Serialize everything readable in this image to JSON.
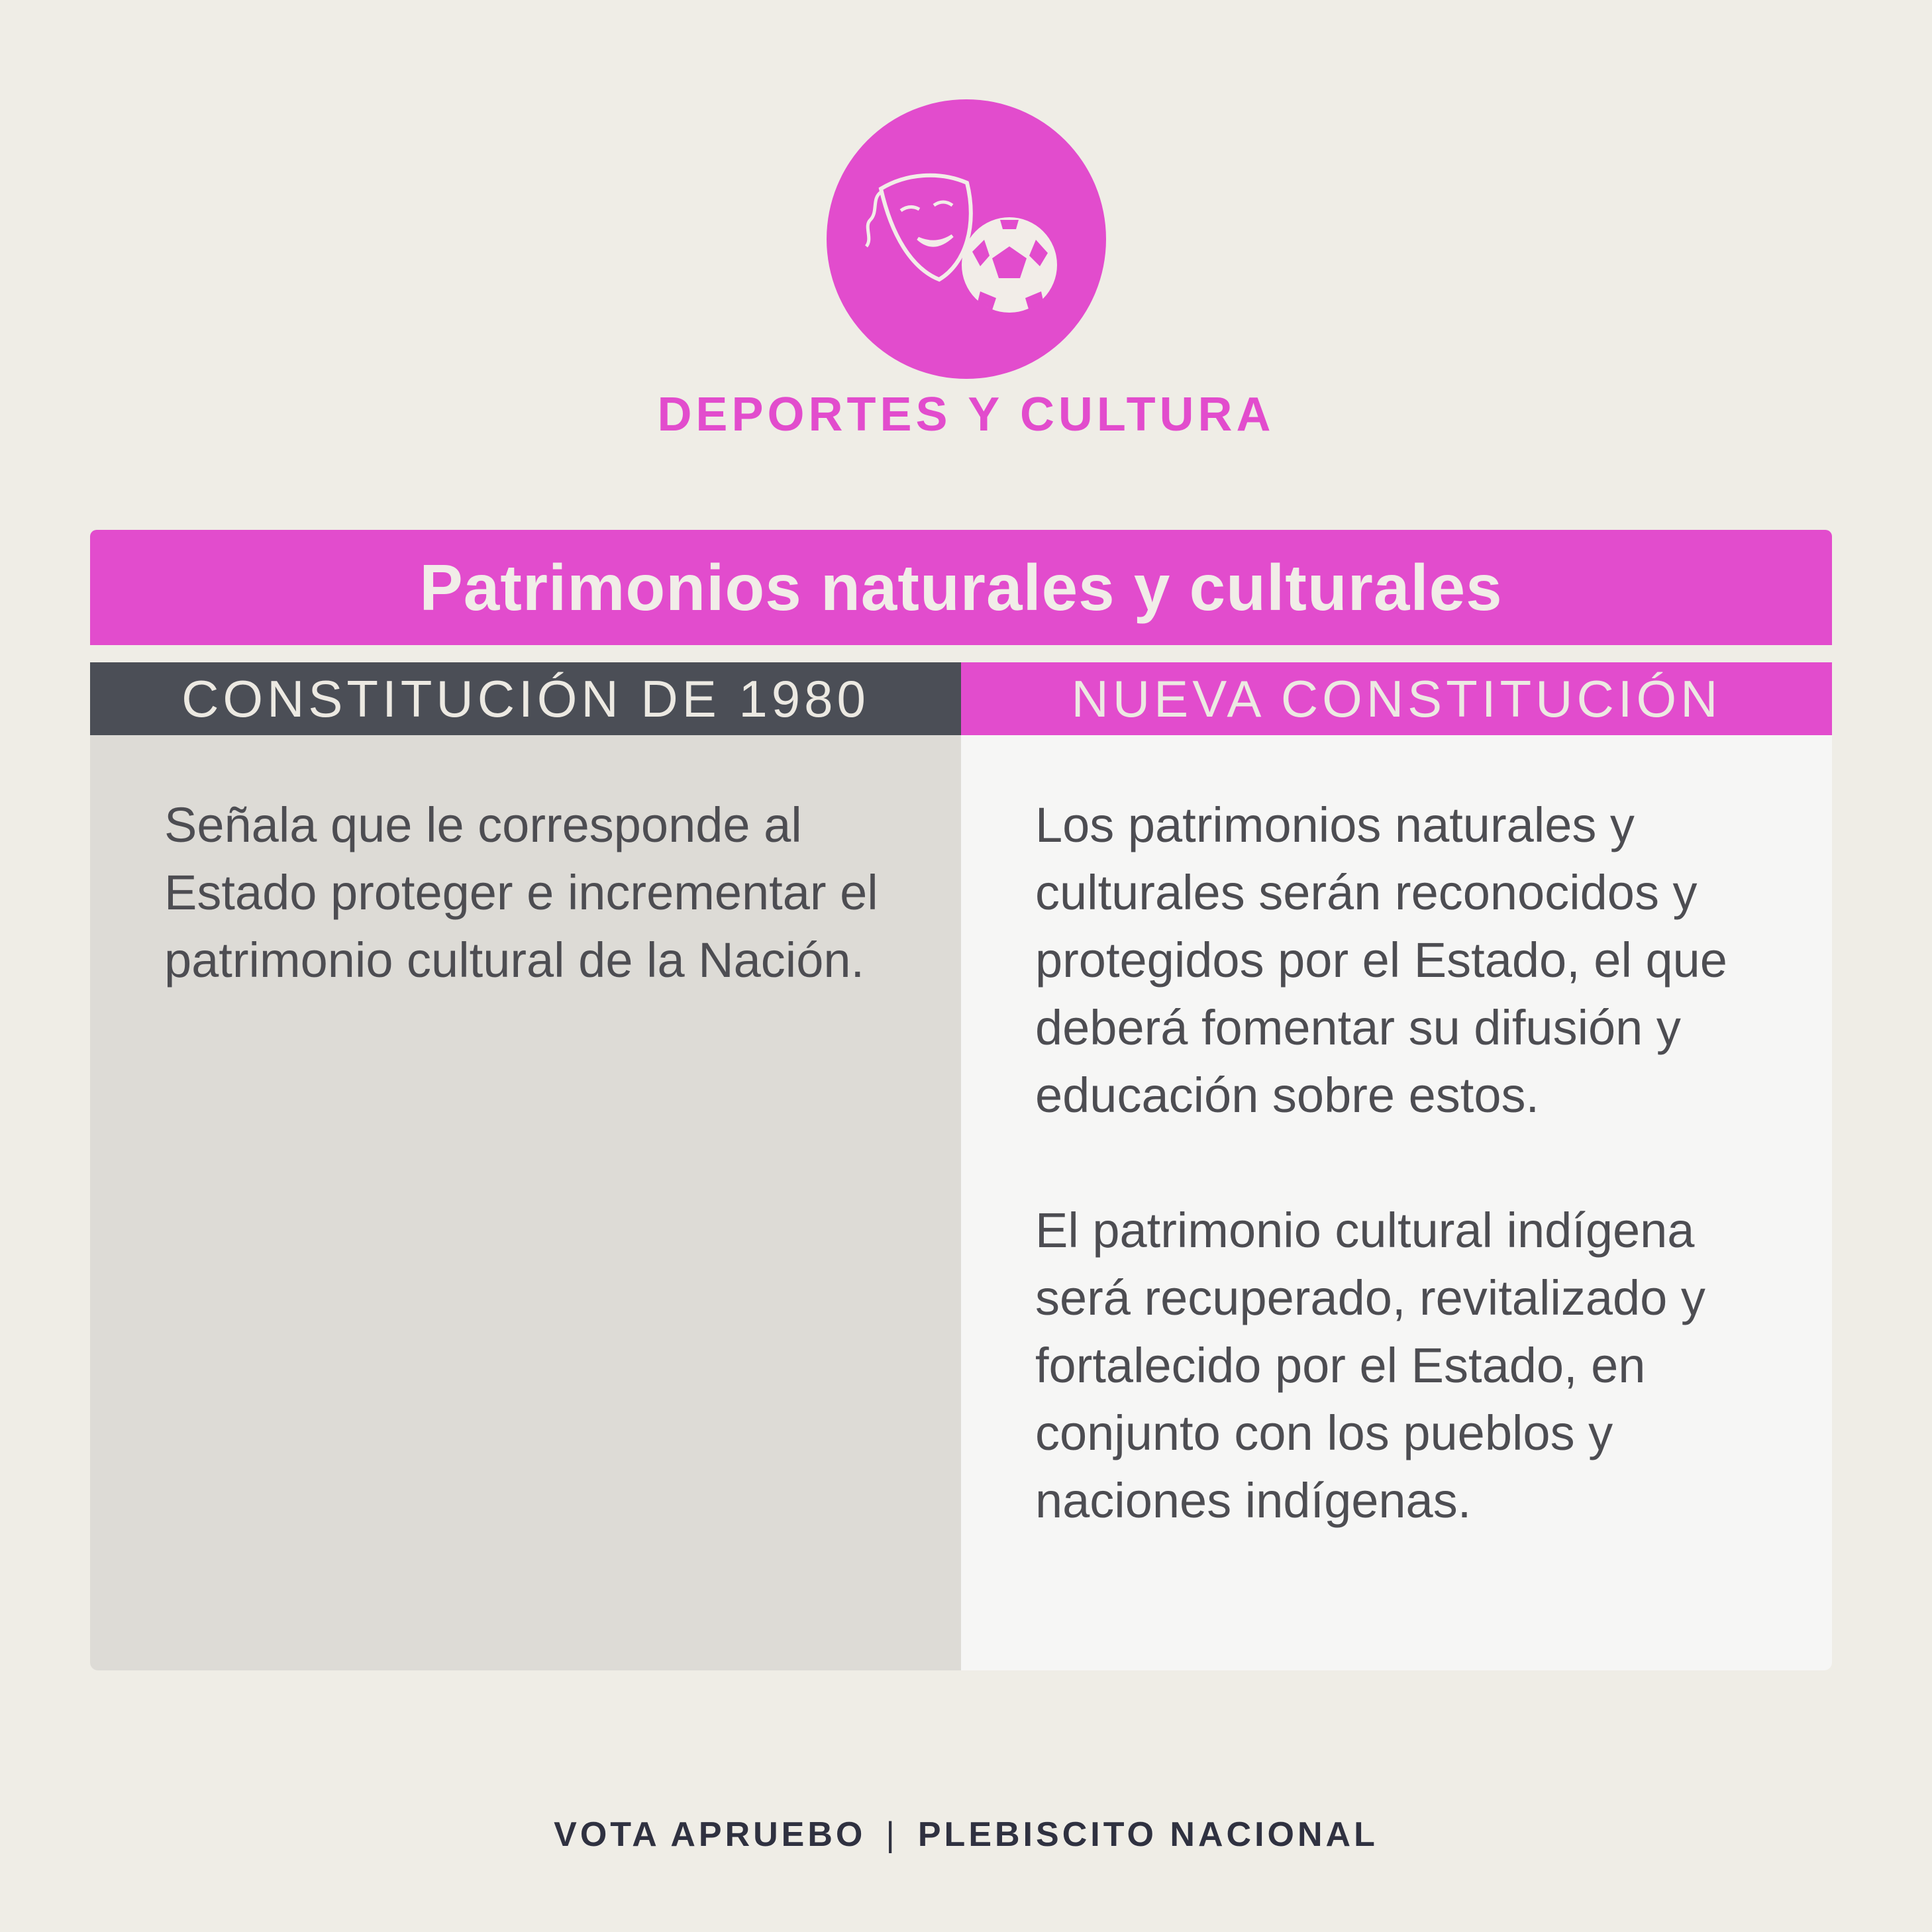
{
  "category": {
    "label": "DEPORTES Y CULTURA",
    "icon": "theatre-mask-and-soccer-ball-icon"
  },
  "title": "Patrimonios naturales y culturales",
  "columns": [
    {
      "header": "CONSTITUCIÓN DE 1980",
      "paragraphs": [
        "Señala que le corresponde al Estado proteger e incrementar el patrimonio cultural de la Nación."
      ]
    },
    {
      "header": "NUEVA CONSTITUCIÓN",
      "paragraphs": [
        "Los patrimonios naturales y culturales serán reconocidos y protegidos por el Estado, el que deberá fomentar su difusión y educación sobre estos.",
        "El patrimonio cultural indígena será recuperado, revitalizado y fortalecido por el Estado, en conjunto con los pueblos y naciones indígenas."
      ]
    }
  ],
  "footer": {
    "left": "VOTA APRUEBO",
    "separator": "|",
    "right": "PLEBISCITO NACIONAL"
  },
  "colors": {
    "accent": "#e24ccd",
    "dark_header": "#4b4e56",
    "background": "#efede6"
  }
}
